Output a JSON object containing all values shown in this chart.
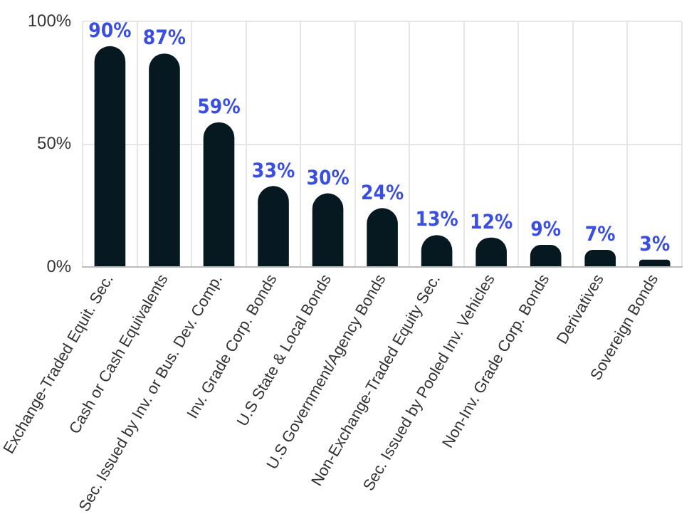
{
  "chart_data": {
    "type": "bar",
    "categories": [
      "Exchange-Traded Equit. Sec.",
      "Cash or Cash Equivalents",
      "Sec. Issued by Inv. or Bus. Dev. Comp.",
      "Inv. Grade Corp. Bonds",
      "U.S State & Local Bonds",
      "U.S Government/Agency Bonds",
      "Non-Exchange-Traded Equity Sec.",
      "Sec. Issued by Pooled Inv. Vehicles",
      "Non-Inv. Grade Corp. Bonds",
      "Derivatives",
      "Sovereign Bonds"
    ],
    "values": [
      90,
      87,
      59,
      33,
      30,
      24,
      13,
      12,
      9,
      7,
      3
    ],
    "value_labels": [
      "90%",
      "87%",
      "59%",
      "33%",
      "30%",
      "24%",
      "13%",
      "12%",
      "9%",
      "7%",
      "3%"
    ],
    "color": "#061820",
    "ylim": [
      0,
      100
    ],
    "yticks": [
      {
        "value": 0,
        "label": "0%"
      },
      {
        "value": 50,
        "label": "50%"
      },
      {
        "value": 100,
        "label": "100%"
      }
    ],
    "grid": true,
    "legend": false
  }
}
